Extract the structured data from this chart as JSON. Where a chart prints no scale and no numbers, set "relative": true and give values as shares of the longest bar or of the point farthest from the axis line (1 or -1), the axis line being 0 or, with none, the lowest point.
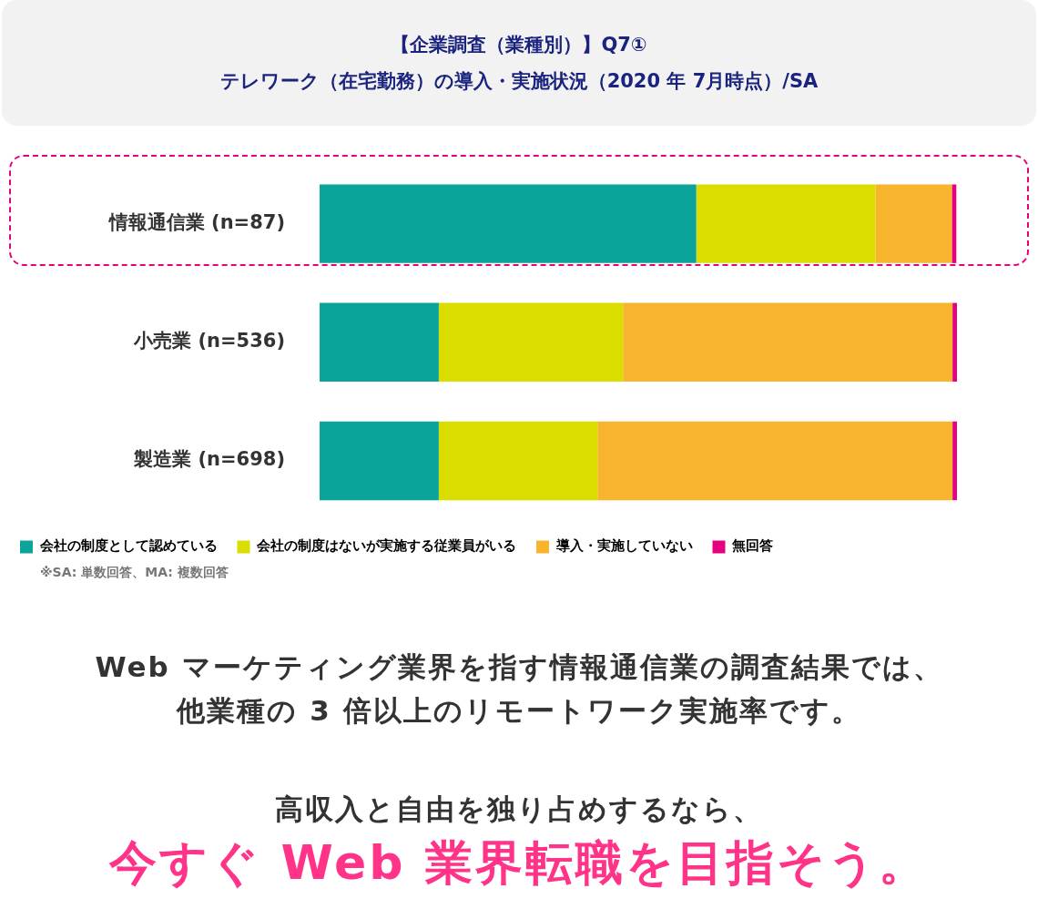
{
  "chart_data": {
    "type": "bar",
    "orientation": "horizontal",
    "stacked": true,
    "relative": true,
    "title": "【企業調査（業種別）】Q7①",
    "subtitle": "テレワーク（在宅勤務）の導入・実施状況（2020 年 7月時点）/SA",
    "categories": [
      "情報通信業 (n=87)",
      "小売業 (n=536)",
      "製造業 (n=698)"
    ],
    "series": [
      {
        "name": "会社の制度として認めている",
        "color": "#0ca39a",
        "values": [
          0.591,
          0.187,
          0.187
        ]
      },
      {
        "name": "会社の制度はないが実施する従業員がいる",
        "color": "#d9de00",
        "values": [
          0.281,
          0.289,
          0.249
        ]
      },
      {
        "name": "導入・実施していない",
        "color": "#f7b42c",
        "values": [
          0.12,
          0.517,
          0.557
        ]
      },
      {
        "name": "無回答",
        "color": "#e4007f",
        "values": [
          0.007,
          0.007,
          0.007
        ]
      }
    ],
    "legend": "bottom",
    "grid": false,
    "annotations": [
      "※SA: 単数回答、MA: 複数回答",
      "Web マーケティング業界を指す情報通信業の調査結果では、",
      "他業種の 3 倍以上のリモートワーク実施率です。",
      "高収入と自由を独り占めするなら、",
      "今すぐ Web 業界転職を目指そう。"
    ]
  }
}
